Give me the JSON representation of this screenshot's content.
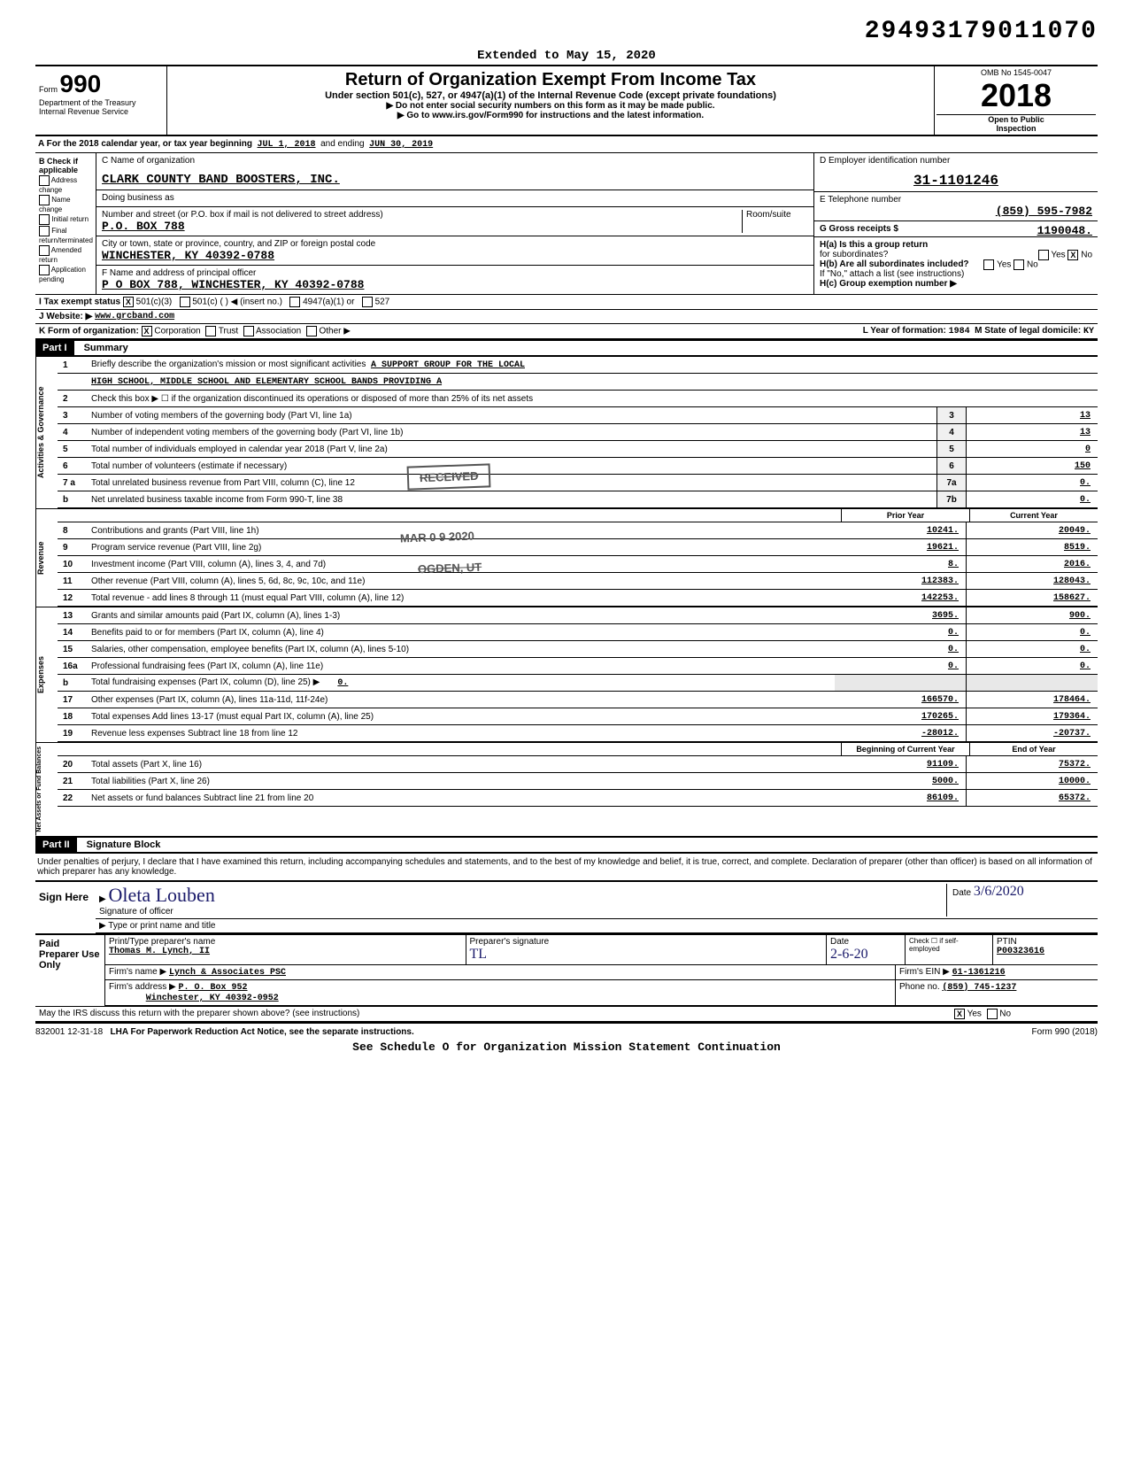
{
  "barcode": "29493179011070",
  "header": {
    "extended": "Extended to May 15, 2020",
    "formNum": "990",
    "title": "Return of Organization Exempt From Income Tax",
    "subtitle": "Under section 501(c), 527, or 4947(a)(1) of the Internal Revenue Code (except private foundations)",
    "line1": "▶ Do not enter social security numbers on this form as it may be made public.",
    "line2": "▶ Go to www.irs.gov/Form990 for instructions and the latest information.",
    "dept": "Department of the Treasury",
    "irs": "Internal Revenue Service",
    "omb": "OMB No 1545-0047",
    "year": "2018",
    "open": "Open to Public",
    "inspection": "Inspection"
  },
  "sectionA": {
    "prefix": "A For the 2018 calendar year, or tax year beginning",
    "begin": "JUL 1, 2018",
    "mid": "and ending",
    "end": "JUN 30, 2019"
  },
  "colB": {
    "title": "B Check if applicable",
    "items": [
      "Address change",
      "Name change",
      "Initial return",
      "Final return/terminated",
      "Amended return",
      "Application pending"
    ]
  },
  "colC": {
    "nameLabel": "C Name of organization",
    "name": "CLARK COUNTY BAND BOOSTERS, INC.",
    "dbaLabel": "Doing business as",
    "dba": "",
    "streetLabel": "Number and street (or P.O. box if mail is not delivered to street address)",
    "roomLabel": "Room/suite",
    "street": "P.O. BOX 788",
    "cityLabel": "City or town, state or province, country, and ZIP or foreign postal code",
    "city": "WINCHESTER, KY  40392-0788",
    "officerLabel": "F Name and address of principal officer",
    "officer": "P O BOX 788, WINCHESTER, KY  40392-0788"
  },
  "colD": {
    "einLabel": "D Employer identification number",
    "ein": "31-1101246",
    "phoneLabel": "E Telephone number",
    "phone": "(859) 595-7982",
    "grossLabel": "G Gross receipts $",
    "gross": "1190048.",
    "haLabel": "H(a) Is this a group return",
    "haLabel2": "for subordinates?",
    "hbLabel": "H(b) Are all subordinates included?",
    "hbNote": "If \"No,\" attach a list (see instructions)",
    "hcLabel": "H(c) Group exemption number ▶"
  },
  "rowI": {
    "label": "I  Tax exempt status",
    "opt1": "501(c)(3)",
    "opt2": "501(c) (",
    "opt2b": ")  ◀ (insert no.)",
    "opt3": "4947(a)(1) or",
    "opt4": "527"
  },
  "rowJ": {
    "label": "J Website: ▶",
    "value": "www.grcband.com"
  },
  "rowK": {
    "label": "K Form of organization:",
    "corp": "Corporation",
    "trust": "Trust",
    "assoc": "Association",
    "other": "Other ▶",
    "yearLabel": "L Year of formation:",
    "year": "1984",
    "stateLabel": "M State of legal domicile:",
    "state": "KY"
  },
  "part1": {
    "label": "Part I",
    "title": "Summary"
  },
  "summary": {
    "section1Label": "Activities & Governance",
    "line1": {
      "num": "1",
      "desc": "Briefly describe the organization's mission or most significant activities",
      "val": "A SUPPORT GROUP FOR THE LOCAL",
      "val2": "HIGH SCHOOL, MIDDLE SCHOOL AND ELEMENTARY SCHOOL BANDS PROVIDING A"
    },
    "line2": "Check this box ▶ ☐ if the organization discontinued its operations or disposed of more than 25% of its net assets",
    "rows": [
      {
        "num": "3",
        "desc": "Number of voting members of the governing body (Part VI, line 1a)",
        "box": "3",
        "v": "13"
      },
      {
        "num": "4",
        "desc": "Number of independent voting members of the governing body (Part VI, line 1b)",
        "box": "4",
        "v": "13"
      },
      {
        "num": "5",
        "desc": "Total number of individuals employed in calendar year 2018 (Part V, line 2a)",
        "box": "5",
        "v": "0"
      },
      {
        "num": "6",
        "desc": "Total number of volunteers (estimate if necessary)",
        "box": "6",
        "v": "150"
      },
      {
        "num": "7 a",
        "desc": "Total unrelated business revenue from Part VIII, column (C), line 12",
        "box": "7a",
        "v": "0."
      },
      {
        "num": "b",
        "desc": "Net unrelated business taxable income from Form 990-T, line 38",
        "box": "7b",
        "v": "0."
      }
    ],
    "section2Label": "Revenue",
    "priorHeader": "Prior Year",
    "currentHeader": "Current Year",
    "revRows": [
      {
        "num": "8",
        "desc": "Contributions and grants (Part VIII, line 1h)",
        "p": "10241.",
        "c": "20049."
      },
      {
        "num": "9",
        "desc": "Program service revenue (Part VIII, line 2g)",
        "p": "19621.",
        "c": "8519."
      },
      {
        "num": "10",
        "desc": "Investment income (Part VIII, column (A), lines 3, 4, and 7d)",
        "p": "8.",
        "c": "2016."
      },
      {
        "num": "11",
        "desc": "Other revenue (Part VIII, column (A), lines 5, 6d, 8c, 9c, 10c, and 11e)",
        "p": "112383.",
        "c": "128043."
      },
      {
        "num": "12",
        "desc": "Total revenue - add lines 8 through 11 (must equal Part VIII, column (A), line 12)",
        "p": "142253.",
        "c": "158627."
      }
    ],
    "section3Label": "Expenses",
    "expRows": [
      {
        "num": "13",
        "desc": "Grants and similar amounts paid (Part IX, column (A), lines 1-3)",
        "p": "3695.",
        "c": "900."
      },
      {
        "num": "14",
        "desc": "Benefits paid to or for members (Part IX, column (A), line 4)",
        "p": "0.",
        "c": "0."
      },
      {
        "num": "15",
        "desc": "Salaries, other compensation, employee benefits (Part IX, column (A), lines 5-10)",
        "p": "0.",
        "c": "0."
      },
      {
        "num": "16a",
        "desc": "Professional fundraising fees (Part IX, column (A), line 11e)",
        "p": "0.",
        "c": "0."
      },
      {
        "num": "b",
        "desc": "Total fundraising expenses (Part IX, column (D), line 25)   ▶",
        "p": "",
        "c": "",
        "inline": "0."
      },
      {
        "num": "17",
        "desc": "Other expenses (Part IX, column (A), lines 11a-11d, 11f-24e)",
        "p": "166570.",
        "c": "178464."
      },
      {
        "num": "18",
        "desc": "Total expenses Add lines 13-17 (must equal Part IX, column (A), line 25)",
        "p": "170265.",
        "c": "179364."
      },
      {
        "num": "19",
        "desc": "Revenue less expenses Subtract line 18 from line 12",
        "p": "-28012.",
        "c": "-20737."
      }
    ],
    "section4Label": "Net Assets or Fund Balances",
    "begHeader": "Beginning of Current Year",
    "endHeader": "End of Year",
    "netRows": [
      {
        "num": "20",
        "desc": "Total assets (Part X, line 16)",
        "p": "91109.",
        "c": "75372."
      },
      {
        "num": "21",
        "desc": "Total liabilities (Part X, line 26)",
        "p": "5000.",
        "c": "10000."
      },
      {
        "num": "22",
        "desc": "Net assets or fund balances Subtract line 21 from line 20",
        "p": "86109.",
        "c": "65372."
      }
    ]
  },
  "part2": {
    "label": "Part II",
    "title": "Signature Block",
    "perjury": "Under penalties of perjury, I declare that I have examined this return, including accompanying schedules and statements, and to the best of my knowledge and belief, it is true, correct, and complete. Declaration of preparer (other than officer) is based on all information of which preparer has any knowledge."
  },
  "sign": {
    "here": "Sign Here",
    "sigLabel": "Signature of officer",
    "dateLabel": "Date",
    "dateVal": "3/6/2020",
    "typeLabel": "Type or print name and title"
  },
  "prep": {
    "leftLabel": "Paid Preparer Use Only",
    "nameLabel": "Print/Type preparer's name",
    "name": "Thomas M. Lynch, II",
    "sigLabel": "Preparer's signature",
    "dateLabel": "Date",
    "date": "2-6-20",
    "checkLabel": "Check ☐ if self-employed",
    "ptinLabel": "PTIN",
    "ptin": "P00323616",
    "firmNameLabel": "Firm's name ▶",
    "firmName": "Lynch & Associates PSC",
    "firmEinLabel": "Firm's EIN ▶",
    "firmEin": "61-1361216",
    "firmAddrLabel": "Firm's address ▶",
    "firmAddr1": "P. O. Box 952",
    "firmAddr2": "Winchester, KY 40392-0952",
    "phoneLabel": "Phone no.",
    "phone": "(859) 745-1237"
  },
  "bottom": {
    "discuss": "May the IRS discuss this return with the preparer shown above? (see instructions)",
    "yes": "Yes",
    "no": "No",
    "lha": "LHA  For Paperwork Reduction Act Notice, see the separate instructions.",
    "code": "832001  12-31-18",
    "form": "Form 990 (2018)",
    "sched": "See Schedule O for Organization Mission Statement Continuation"
  },
  "stamps": {
    "received": "RECEIVED",
    "date": "MAR 0 9 2020",
    "ogden": "OGDEN, UT"
  },
  "colors": {
    "text": "#000000",
    "bg": "#ffffff",
    "hand": "#1a1a6a",
    "stamp": "#555555"
  }
}
